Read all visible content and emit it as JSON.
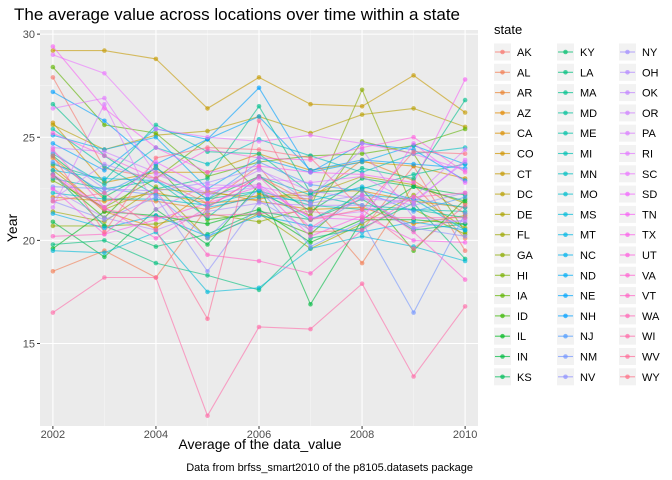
{
  "chart_data": {
    "type": "line",
    "title": "The average value across locations over time within a state",
    "xlabel": "Average of the data_value",
    "ylabel": "Year",
    "caption": "Data from brfss_smart2010 of the p8105.datasets package",
    "legend_title": "state",
    "legend_position": "right",
    "grid": true,
    "xlim": [
      2001.75,
      2010.25
    ],
    "ylim": [
      11.0,
      30.2
    ],
    "x_ticks": [
      2002,
      2004,
      2006,
      2008,
      2010
    ],
    "y_ticks": [
      15,
      20,
      25,
      30
    ],
    "x": [
      2002,
      2003,
      2004,
      2005,
      2006,
      2007,
      2008,
      2009,
      2010
    ],
    "series": [
      {
        "name": "AK",
        "color": "#F8766D",
        "values": [
          27.9,
          23.5,
          23.0,
          21.8,
          23.6,
          20.4,
          20.5,
          23.6,
          19.5
        ]
      },
      {
        "name": "AL",
        "color": "#F27D53",
        "values": [
          18.5,
          19.5,
          18.2,
          21.6,
          23.1,
          21.8,
          18.9,
          22.7,
          20.1
        ]
      },
      {
        "name": "AR",
        "color": "#EA8331",
        "values": [
          24.0,
          22.0,
          21.9,
          21.5,
          22.2,
          22.0,
          23.9,
          22.9,
          21.3
        ]
      },
      {
        "name": "AZ",
        "color": "#E38900",
        "values": [
          23.6,
          21.4,
          20.6,
          22.4,
          21.9,
          21.5,
          21.6,
          20.8,
          21.2
        ]
      },
      {
        "name": "CA",
        "color": "#DA8F00",
        "values": [
          22.1,
          21.9,
          22.3,
          21.8,
          22.0,
          22.4,
          22.4,
          21.9,
          21.6
        ]
      },
      {
        "name": "CO",
        "color": "#D09400",
        "values": [
          25.7,
          22.8,
          23.3,
          23.3,
          24.2,
          23.4,
          23.8,
          23.6,
          23.0
        ]
      },
      {
        "name": "CT",
        "color": "#C59900",
        "values": [
          29.2,
          29.2,
          28.8,
          26.4,
          27.9,
          26.6,
          26.5,
          28.0,
          26.2
        ]
      },
      {
        "name": "DC",
        "color": "#B89F00",
        "values": [
          25.6,
          24.4,
          25.1,
          25.3,
          26.0,
          25.2,
          26.1,
          26.4,
          25.5
        ]
      },
      {
        "name": "DE",
        "color": "#ABA300",
        "values": [
          23.4,
          21.5,
          22.5,
          22.3,
          22.1,
          22.2,
          23.1,
          22.7,
          21.8
        ]
      },
      {
        "name": "FL",
        "color": "#9CA700",
        "values": [
          21.4,
          20.9,
          22.6,
          20.1,
          21.3,
          19.6,
          20.8,
          22.2,
          20.6
        ]
      },
      {
        "name": "GA",
        "color": "#8BAB00",
        "values": [
          20.7,
          20.7,
          20.8,
          21.3,
          20.9,
          21.6,
          27.3,
          21.5,
          20.3
        ]
      },
      {
        "name": "HI",
        "color": "#77AF00",
        "values": [
          22.9,
          21.6,
          23.0,
          24.9,
          22.3,
          21.2,
          24.8,
          24.2,
          20.4
        ]
      },
      {
        "name": "IA",
        "color": "#5EB300",
        "values": [
          28.4,
          25.6,
          25.2,
          23.1,
          23.8,
          24.1,
          24.2,
          24.6,
          25.4
        ]
      },
      {
        "name": "ID",
        "color": "#39B600",
        "values": [
          23.2,
          21.1,
          23.6,
          21.0,
          21.3,
          20.3,
          22.5,
          19.5,
          22.0
        ]
      },
      {
        "name": "IL",
        "color": "#00B81F",
        "values": [
          19.6,
          21.4,
          21.2,
          20.8,
          21.5,
          19.9,
          21.0,
          21.0,
          20.8
        ]
      },
      {
        "name": "IN",
        "color": "#00BA42",
        "values": [
          20.9,
          19.2,
          21.5,
          19.8,
          22.7,
          16.9,
          21.0,
          22.6,
          21.9
        ]
      },
      {
        "name": "KS",
        "color": "#00BC59",
        "values": [
          24.1,
          22.1,
          23.5,
          22.0,
          23.1,
          21.4,
          23.0,
          22.6,
          22.2
        ]
      },
      {
        "name": "KY",
        "color": "#00BD6D",
        "values": [
          23.2,
          20.7,
          19.7,
          20.3,
          21.4,
          21.0,
          22.0,
          20.5,
          20.8
        ]
      },
      {
        "name": "LA",
        "color": "#00BF7D",
        "values": [
          19.8,
          20.0,
          18.9,
          18.3,
          17.6,
          20.1,
          20.6,
          21.8,
          19.1
        ]
      },
      {
        "name": "MA",
        "color": "#00C08D",
        "values": [
          26.6,
          24.1,
          22.5,
          23.0,
          26.5,
          22.3,
          23.5,
          23.0,
          26.8
        ]
      },
      {
        "name": "MD",
        "color": "#00C19A",
        "values": [
          23.7,
          22.9,
          25.6,
          24.3,
          24.2,
          22.3,
          22.5,
          23.2,
          23.7
        ]
      },
      {
        "name": "ME",
        "color": "#00C1A7",
        "values": [
          25.4,
          23.6,
          22.2,
          22.0,
          22.4,
          21.7,
          21.5,
          21.5,
          21.1
        ]
      },
      {
        "name": "MI",
        "color": "#00C0B4",
        "values": [
          23.0,
          22.5,
          22.9,
          21.1,
          23.1,
          22.2,
          21.7,
          21.5,
          21.4
        ]
      },
      {
        "name": "MN",
        "color": "#00BFC1",
        "values": [
          24.2,
          22.7,
          24.5,
          23.7,
          24.9,
          24.1,
          23.3,
          24.2,
          24.5
        ]
      },
      {
        "name": "MO",
        "color": "#00BDCD",
        "values": [
          22.3,
          22.0,
          22.0,
          21.7,
          22.4,
          21.0,
          22.2,
          22.0,
          20.5
        ]
      },
      {
        "name": "MS",
        "color": "#00BAD9",
        "values": [
          19.5,
          19.4,
          20.4,
          17.5,
          17.7,
          19.6,
          20.2,
          19.7,
          19.0
        ]
      },
      {
        "name": "MT",
        "color": "#00B6E4",
        "values": [
          23.4,
          23.0,
          22.9,
          21.6,
          22.1,
          21.9,
          22.6,
          22.0,
          21.6
        ]
      },
      {
        "name": "NC",
        "color": "#00B2ED",
        "values": [
          21.3,
          20.6,
          21.2,
          20.2,
          21.2,
          20.7,
          20.4,
          20.9,
          20.5
        ]
      },
      {
        "name": "ND",
        "color": "#00ACF5",
        "values": [
          25.1,
          24.4,
          25.0,
          22.5,
          24.0,
          23.3,
          23.8,
          24.6,
          23.7
        ]
      },
      {
        "name": "NE",
        "color": "#00A5FC",
        "values": [
          24.7,
          23.4,
          25.4,
          24.9,
          26.0,
          23.4,
          23.9,
          23.7,
          23.5
        ]
      },
      {
        "name": "NH",
        "color": "#00A0FF",
        "values": [
          27.2,
          25.8,
          23.7,
          24.9,
          27.4,
          23.3,
          24.7,
          24.4,
          22.9
        ]
      },
      {
        "name": "NJ",
        "color": "#4F9BFF",
        "values": [
          23.8,
          22.3,
          23.5,
          22.0,
          23.8,
          22.7,
          22.4,
          21.4,
          22.1
        ]
      },
      {
        "name": "NM",
        "color": "#7596FF",
        "values": [
          22.6,
          22.5,
          22.2,
          20.1,
          22.5,
          19.7,
          20.9,
          16.5,
          21.3
        ]
      },
      {
        "name": "NV",
        "color": "#8F91FF",
        "values": [
          21.9,
          21.0,
          22.1,
          18.5,
          21.9,
          20.5,
          22.1,
          20.6,
          20.2
        ]
      },
      {
        "name": "NY",
        "color": "#A38DFF",
        "values": [
          24.3,
          22.5,
          22.4,
          22.8,
          23.5,
          21.8,
          22.2,
          21.7,
          22.3
        ]
      },
      {
        "name": "OH",
        "color": "#B489FF",
        "values": [
          22.5,
          21.1,
          20.5,
          21.4,
          21.8,
          21.7,
          21.7,
          20.6,
          21.0
        ]
      },
      {
        "name": "OK",
        "color": "#C285FF",
        "values": [
          22.0,
          23.7,
          22.9,
          22.2,
          22.6,
          22.1,
          24.4,
          21.1,
          20.9
        ]
      },
      {
        "name": "OR",
        "color": "#CF81FF",
        "values": [
          24.5,
          24.3,
          23.3,
          22.2,
          23.4,
          22.4,
          22.0,
          21.9,
          23.8
        ]
      },
      {
        "name": "PA",
        "color": "#DA7DFF",
        "values": [
          21.6,
          26.6,
          21.5,
          22.7,
          22.6,
          21.1,
          21.4,
          22.1,
          24.4
        ]
      },
      {
        "name": "RI",
        "color": "#E37AFF",
        "values": [
          26.4,
          26.9,
          23.2,
          22.3,
          23.0,
          22.8,
          23.1,
          21.8,
          23.9
        ]
      },
      {
        "name": "SC",
        "color": "#EB76FF",
        "values": [
          29.0,
          28.1,
          25.4,
          25.0,
          24.8,
          25.1,
          24.7,
          24.2,
          23.4
        ]
      },
      {
        "name": "SD",
        "color": "#F265FE",
        "values": [
          23.2,
          21.6,
          23.8,
          22.5,
          22.7,
          21.1,
          21.0,
          24.7,
          22.8
        ]
      },
      {
        "name": "TN",
        "color": "#F763F4",
        "values": [
          29.4,
          26.4,
          24.5,
          23.3,
          23.6,
          23.3,
          23.2,
          22.8,
          27.8
        ]
      },
      {
        "name": "TX",
        "color": "#FB61EA",
        "values": [
          22.5,
          20.3,
          21.0,
          21.8,
          22.6,
          20.2,
          21.2,
          20.0,
          19.9
        ]
      },
      {
        "name": "UT",
        "color": "#FE61DF",
        "values": [
          25.2,
          24.1,
          23.0,
          24.4,
          24.0,
          23.9,
          24.5,
          25.0,
          23.3
        ]
      },
      {
        "name": "VA",
        "color": "#FF62D2",
        "values": [
          24.4,
          21.6,
          20.1,
          21.6,
          23.1,
          20.6,
          22.2,
          20.4,
          18.1
        ]
      },
      {
        "name": "VT",
        "color": "#FF64C5",
        "values": [
          20.2,
          20.3,
          22.4,
          19.3,
          19.0,
          18.4,
          20.5,
          22.1,
          22.3
        ]
      },
      {
        "name": "WA",
        "color": "#FF67B7",
        "values": [
          23.1,
          21.5,
          21.1,
          21.2,
          21.3,
          21.4,
          21.1,
          21.1,
          21.1
        ]
      },
      {
        "name": "WI",
        "color": "#FF6AA8",
        "values": [
          16.5,
          18.2,
          18.2,
          11.5,
          15.8,
          15.7,
          17.9,
          13.4,
          16.8
        ]
      },
      {
        "name": "WV",
        "color": "#FF6C98",
        "values": [
          21.9,
          22.3,
          20.5,
          16.2,
          25.8,
          21.0,
          21.5,
          19.6,
          21.7
        ]
      },
      {
        "name": "WY",
        "color": "#FD6F86",
        "values": [
          24.1,
          20.4,
          24.0,
          24.5,
          24.4,
          24.0,
          21.5,
          24.3,
          24.2
        ]
      }
    ]
  }
}
